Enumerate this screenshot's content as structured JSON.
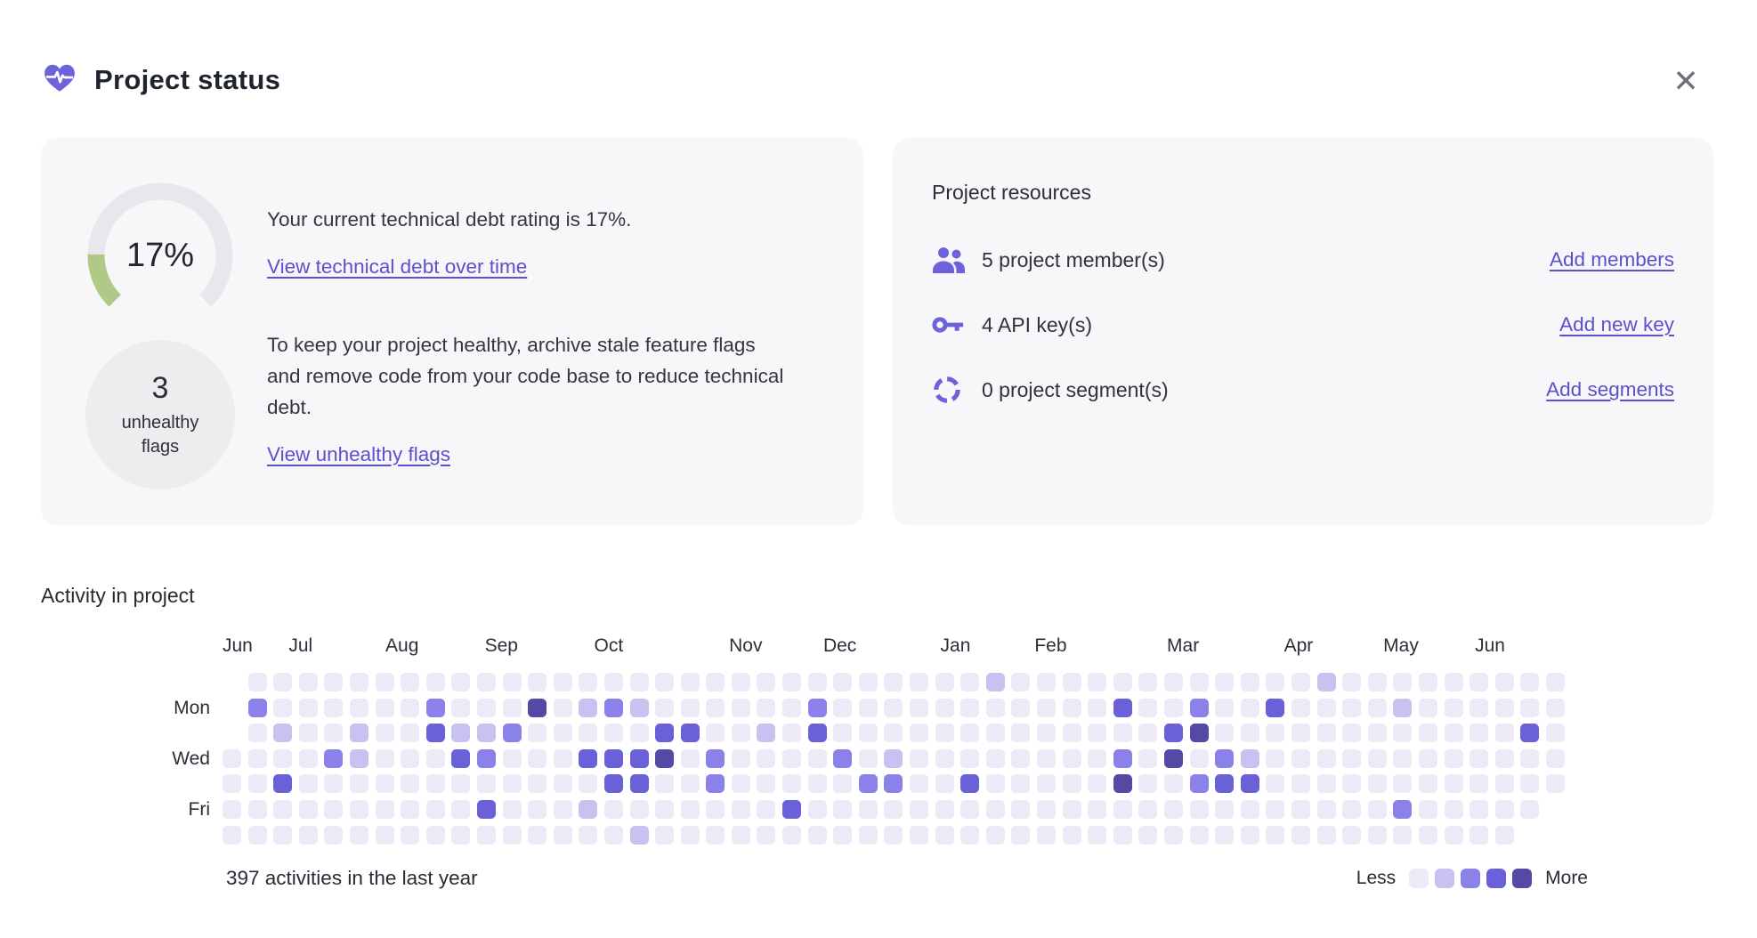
{
  "header": {
    "title": "Project status",
    "close_glyph": "✕"
  },
  "accent_color": "#6b62dc",
  "debt_card": {
    "gauge": {
      "percent": 17,
      "label": "17%",
      "fill_color": "#b1c987",
      "track_color": "#e8e7eb"
    },
    "description": "Your current technical debt rating is 17%.",
    "debt_link": "View technical debt over time",
    "flags_count": "3",
    "flags_label": "unhealthy flags",
    "advice": "To keep your project healthy, archive stale feature flags and remove code from your code base to reduce technical debt.",
    "flags_link": "View unhealthy flags"
  },
  "resources_card": {
    "title": "Project resources",
    "rows": [
      {
        "icon": "members-icon",
        "text": "5 project member(s)",
        "link": "Add members"
      },
      {
        "icon": "api-key-icon",
        "text": "4 API key(s)",
        "link": "Add new key"
      },
      {
        "icon": "segments-icon",
        "text": "0 project segment(s)",
        "link": "Add segments"
      }
    ]
  },
  "activity": {
    "title": "Activity in project",
    "summary": "397 activities in the last year",
    "legend_less": "Less",
    "legend_more": "More",
    "chart_data": {
      "type": "heatmap",
      "weeks": 53,
      "total_activities": 397,
      "rows_order": [
        "Sun",
        "Mon",
        "Tue",
        "Wed",
        "Thu",
        "Fri",
        "Sat"
      ],
      "day_labels": [
        {
          "row": 1,
          "label": "Mon"
        },
        {
          "row": 3,
          "label": "Wed"
        },
        {
          "row": 5,
          "label": "Fri"
        }
      ],
      "months": [
        {
          "label": "Jun",
          "col": 0
        },
        {
          "label": "Jul",
          "col": 2.6
        },
        {
          "label": "Aug",
          "col": 6.4
        },
        {
          "label": "Sep",
          "col": 10.3
        },
        {
          "label": "Oct",
          "col": 14.6
        },
        {
          "label": "Nov",
          "col": 19.9
        },
        {
          "label": "Dec",
          "col": 23.6
        },
        {
          "label": "Jan",
          "col": 28.2
        },
        {
          "label": "Feb",
          "col": 31.9
        },
        {
          "label": "Mar",
          "col": 37.1
        },
        {
          "label": "Apr",
          "col": 41.7
        },
        {
          "label": "May",
          "col": 45.6
        },
        {
          "label": "Jun",
          "col": 49.2
        }
      ],
      "levels": [
        "#edeaf8",
        "#c8c2f0",
        "#8a81e9",
        "#6a60d8",
        "#544aa5"
      ],
      "grid": [
        "-0000000000000000000000000000010000000000001000000000",
        "-2000000200040121000000200000000000300200300001000000",
        "-0100100311200000330010300000000000003400000000000030",
        "00002100032000333402000020100000000204021000000000000",
        "00300000000000033002000002200300000400233000000000000",
        "0000000000300010000000300000000000000000000000200000-",
        "000000000000000010000000000000000000000000000000000-"
      ]
    }
  }
}
